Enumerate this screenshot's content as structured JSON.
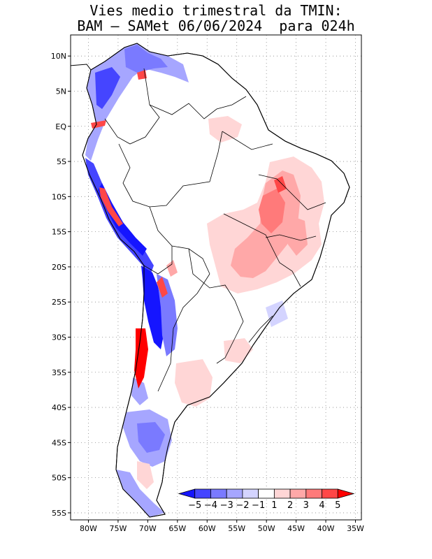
{
  "title": {
    "line1": "Vies medio trimestral da TMIN:",
    "line2": "BAM – SAMet 06/06/2024  para 024h"
  },
  "map": {
    "lon_range": [
      -83,
      -34
    ],
    "lat_range": [
      -56,
      13
    ],
    "grid": true,
    "lon_ticks": [
      {
        "value": -80,
        "label": "80W"
      },
      {
        "value": -75,
        "label": "75W"
      },
      {
        "value": -70,
        "label": "70W"
      },
      {
        "value": -65,
        "label": "65W"
      },
      {
        "value": -60,
        "label": "60W"
      },
      {
        "value": -55,
        "label": "55W"
      },
      {
        "value": -50,
        "label": "50W"
      },
      {
        "value": -45,
        "label": "45W"
      },
      {
        "value": -40,
        "label": "40W"
      },
      {
        "value": -35,
        "label": "35W"
      }
    ],
    "lat_ticks": [
      {
        "value": 10,
        "label": "10N"
      },
      {
        "value": 5,
        "label": "5N"
      },
      {
        "value": 0,
        "label": "EQ"
      },
      {
        "value": -5,
        "label": "5S"
      },
      {
        "value": -10,
        "label": "10S"
      },
      {
        "value": -15,
        "label": "15S"
      },
      {
        "value": -20,
        "label": "20S"
      },
      {
        "value": -25,
        "label": "25S"
      },
      {
        "value": -30,
        "label": "30S"
      },
      {
        "value": -35,
        "label": "35S"
      },
      {
        "value": -40,
        "label": "40S"
      },
      {
        "value": -45,
        "label": "45S"
      },
      {
        "value": -50,
        "label": "50S"
      },
      {
        "value": -55,
        "label": "55S"
      }
    ]
  },
  "colorbar": {
    "labels": [
      "−5",
      "−4",
      "−3",
      "−2",
      "−1",
      "1",
      "2",
      "3",
      "4",
      "5"
    ],
    "colors": [
      "#1515ff",
      "#4545ff",
      "#7a7aff",
      "#a6a6ff",
      "#d4d4ff",
      "#ffffff",
      "#ffd6d6",
      "#ffa8a8",
      "#ff7a7a",
      "#ff4747",
      "#ff0000"
    ]
  }
}
